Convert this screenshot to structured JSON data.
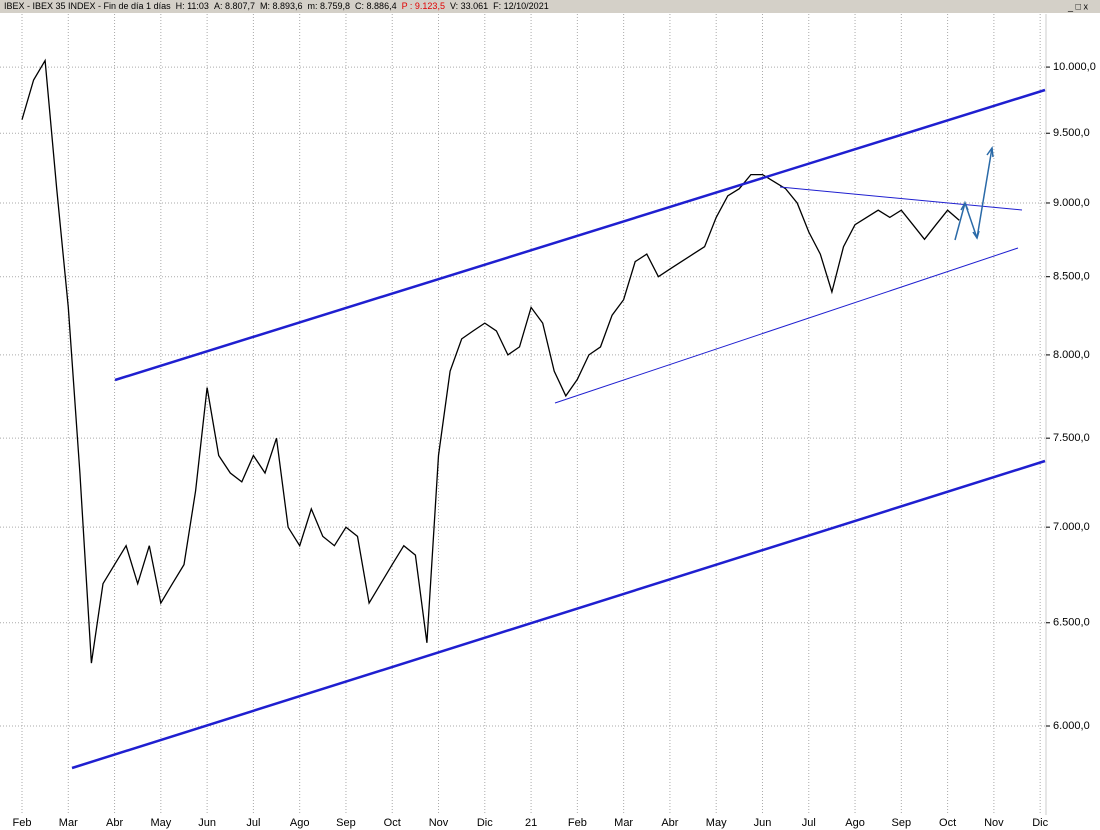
{
  "chart_data": {
    "type": "line",
    "title": "IBEX - IBEX 35 INDEX - Fin de día 1 días",
    "info": [
      "H: 11:03",
      "A: 8.807,7",
      "M: 8.893,6",
      "m: 8.759,8",
      "C: 8.886,4",
      "P : 9.123,5",
      "V: 33.061",
      "F: 12/10/2021"
    ],
    "categories": [
      "Feb",
      null,
      null,
      null,
      "Mar",
      null,
      null,
      null,
      "Abr",
      null,
      null,
      null,
      "May",
      null,
      null,
      null,
      "Jun",
      null,
      null,
      null,
      "Jul",
      null,
      null,
      null,
      "Ago",
      null,
      null,
      null,
      "Sep",
      null,
      null,
      null,
      "Oct",
      null,
      null,
      null,
      "Nov",
      null,
      null,
      null,
      "Dic",
      null,
      null,
      null,
      "21",
      null,
      null,
      null,
      "Feb",
      null,
      null,
      null,
      "Mar",
      null,
      null,
      null,
      "Abr",
      null,
      null,
      null,
      "May",
      null,
      null,
      null,
      "Jun",
      null,
      null,
      null,
      "Jul",
      null,
      null,
      null,
      "Ago",
      null,
      null,
      null,
      "Sep",
      null,
      null,
      null,
      "Oct",
      null,
      null,
      null,
      "Nov",
      null,
      null,
      null,
      "Dic"
    ],
    "series": [
      {
        "name": "IBEX 35",
        "color": "#000000",
        "values": [
          9600,
          9900,
          10050,
          9100,
          8300,
          7300,
          6300,
          6700,
          6800,
          6900,
          6700,
          6900,
          6600,
          6700,
          6800,
          7200,
          7800,
          7400,
          7300,
          7250,
          7400,
          7300,
          7500,
          7000,
          6900,
          7100,
          6950,
          6900,
          7000,
          6950,
          6600,
          6700,
          6800,
          6900,
          6850,
          6400,
          7400,
          7900,
          8100,
          8150,
          8200,
          8150,
          8000,
          8050,
          8300,
          8200,
          7900,
          7750,
          7850,
          8000,
          8050,
          8250,
          8350,
          8600,
          8650,
          8500,
          8550,
          8600,
          8650,
          8700,
          8900,
          9050,
          9100,
          9200,
          9200,
          9150,
          9100,
          9000,
          8800,
          8650,
          8400,
          8700,
          8850,
          8900,
          8950,
          8900,
          8950,
          8850,
          8750,
          8850,
          8950,
          8880,
          null,
          null,
          null,
          null,
          null,
          null,
          null
        ]
      }
    ],
    "log_scale": true,
    "ylim": [
      5600,
      10420
    ],
    "yticks": [
      {
        "value": 6000,
        "label": "6.000,0"
      },
      {
        "value": 6500,
        "label": "6.500,0"
      },
      {
        "value": 7000,
        "label": "7.000,0"
      },
      {
        "value": 7500,
        "label": "7.500,0"
      },
      {
        "value": 8000,
        "label": "8.000,0"
      },
      {
        "value": 8500,
        "label": "8.500,0"
      },
      {
        "value": 9000,
        "label": "9.000,0"
      },
      {
        "value": 9500,
        "label": "9.500,0"
      },
      {
        "value": 10000,
        "label": "10.000,0"
      }
    ],
    "grid": true
  }
}
